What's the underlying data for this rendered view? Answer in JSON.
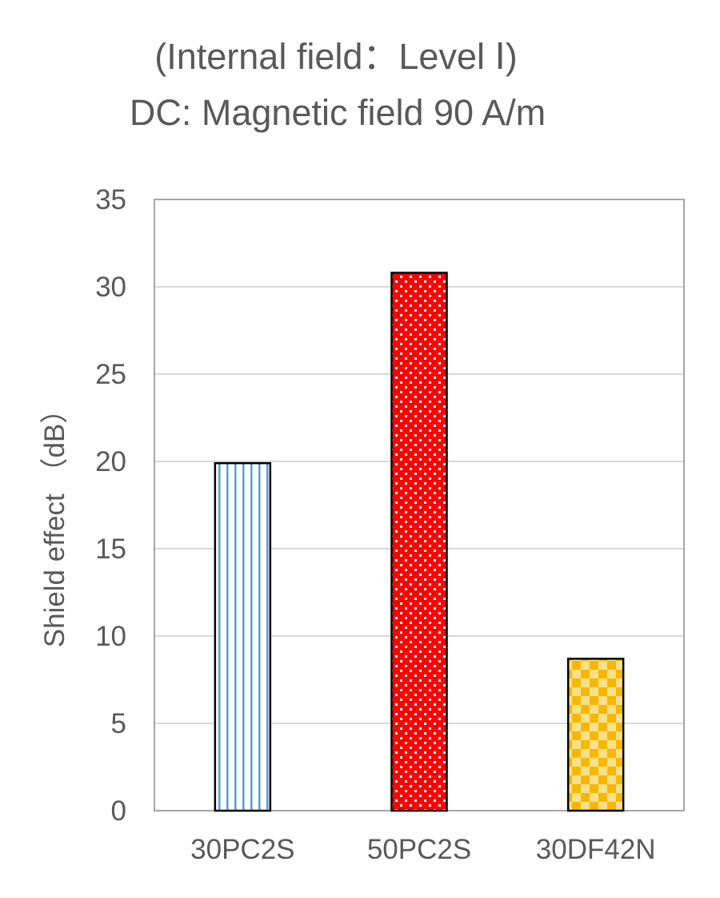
{
  "chart_data": {
    "type": "bar",
    "title": "(Internal field：Level Ⅰ)",
    "subtitle": "DC: Magnetic field 90 A/m",
    "xlabel": "",
    "ylabel": "Shield effect （dB）",
    "categories": [
      "30PC2S",
      "50PC2S",
      "30DF42N"
    ],
    "values": [
      19.9,
      30.8,
      8.7
    ],
    "ylim": [
      0,
      35
    ],
    "yticks": [
      "0",
      "5",
      "10",
      "15",
      "20",
      "25",
      "30",
      "35"
    ],
    "grid": true,
    "legend": "none",
    "bar_fills": [
      "blue-vertical-stripes",
      "red-white-dots",
      "gold-checker"
    ],
    "colors": {
      "stripe": "#5b9bd5",
      "dots_base": "#ff0000",
      "checker": "#f5b800",
      "grid": "#d9d9d9",
      "frame": "#a6a6a6",
      "text": "#595959",
      "bar_outline": "#000000"
    }
  }
}
